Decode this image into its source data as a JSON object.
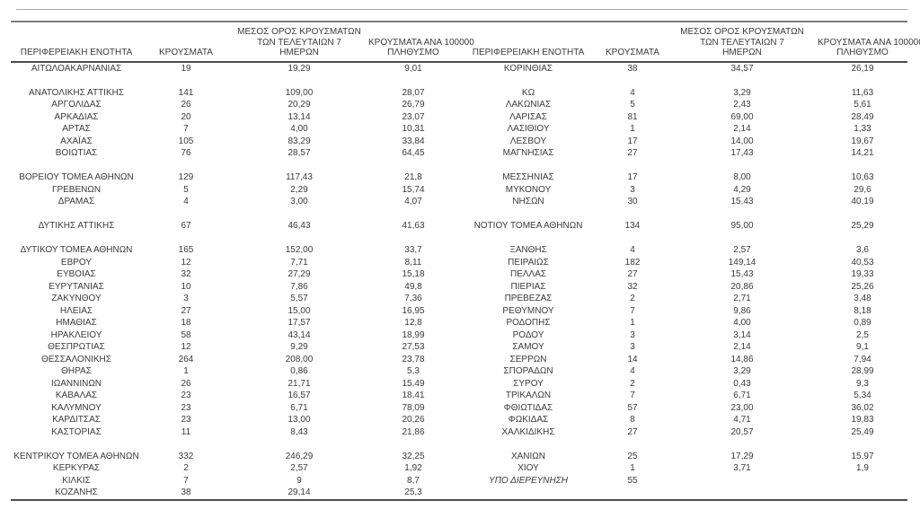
{
  "table": {
    "headers": {
      "region": "ΠΕΡΙΦΕΡΕΙΑΚΗ ΕΝΟΤΗΤΑ",
      "cases": "ΚΡΟΥΣΜΑΤΑ",
      "avg7": "ΜΕΣΟΣ ΟΡΟΣ ΚΡΟΥΣΜΑΤΩΝ\nΤΩΝ ΤΕΛΕΥΤΑΙΩΝ 7\nΗΜΕΡΩΝ",
      "per100k": "ΚΡΟΥΣΜΑΤΑ ΑΝΑ 100000\nΠΛΗΘΥΣΜΟ"
    },
    "rows": [
      {
        "left": [
          "ΑΙΤΩΛΟΑΚΑΡΝΑΝΙΑΣ",
          "19",
          "19,29",
          "9,01"
        ],
        "right": [
          "ΚΟΡΙΝΘΙΑΣ",
          "38",
          "34,57",
          "26,19"
        ]
      },
      {
        "left": [
          "",
          "",
          "",
          ""
        ],
        "right": [
          "",
          "",
          "",
          ""
        ]
      },
      {
        "left": [
          "ΑΝΑΤΟΛΙΚΗΣ ΑΤΤΙΚΗΣ",
          "141",
          "109,00",
          "28,07"
        ],
        "right": [
          "ΚΩ",
          "4",
          "3,29",
          "11,63"
        ]
      },
      {
        "left": [
          "ΑΡΓΟΛΙΔΑΣ",
          "26",
          "20,29",
          "26,79"
        ],
        "right": [
          "ΛΑΚΩΝΙΑΣ",
          "5",
          "2,43",
          "5,61"
        ]
      },
      {
        "left": [
          "ΑΡΚΑΔΙΑΣ",
          "20",
          "13,14",
          "23,07"
        ],
        "right": [
          "ΛΑΡΙΣΑΣ",
          "81",
          "69,00",
          "28,49"
        ]
      },
      {
        "left": [
          "ΑΡΤΑΣ",
          "7",
          "4,00",
          "10,31"
        ],
        "right": [
          "ΛΑΣΙΘΙΟΥ",
          "1",
          "2,14",
          "1,33"
        ]
      },
      {
        "left": [
          "ΑΧΑΪΑΣ",
          "105",
          "83,29",
          "33,84"
        ],
        "right": [
          "ΛΕΣΒΟΥ",
          "17",
          "14,00",
          "19,67"
        ]
      },
      {
        "left": [
          "ΒΟΙΩΤΙΑΣ",
          "76",
          "28,57",
          "64,45"
        ],
        "right": [
          "ΜΑΓΝΗΣΙΑΣ",
          "27",
          "17,43",
          "14,21"
        ]
      },
      {
        "left": [
          "",
          "",
          "",
          ""
        ],
        "right": [
          "",
          "",
          "",
          ""
        ]
      },
      {
        "left": [
          "ΒΟΡΕΙΟΥ ΤΟΜΕΑ ΑΘΗΝΩΝ",
          "129",
          "117,43",
          "21,8"
        ],
        "right": [
          "ΜΕΣΣΗΝΙΑΣ",
          "17",
          "8,00",
          "10,63"
        ]
      },
      {
        "left": [
          "ΓΡΕΒΕΝΩΝ",
          "5",
          "2,29",
          "15,74"
        ],
        "right": [
          "ΜΥΚΟΝΟΥ",
          "3",
          "4,29",
          "29,6"
        ]
      },
      {
        "left": [
          "ΔΡΑΜΑΣ",
          "4",
          "3,00",
          "4,07"
        ],
        "right": [
          "ΝΗΣΩΝ",
          "30",
          "15,43",
          "40,19"
        ]
      },
      {
        "left": [
          "",
          "",
          "",
          ""
        ],
        "right": [
          "",
          "",
          "",
          ""
        ]
      },
      {
        "left": [
          "ΔΥΤΙΚΗΣ ΑΤΤΙΚΗΣ",
          "67",
          "46,43",
          "41,63"
        ],
        "right": [
          "ΝΟΤΙΟΥ ΤΟΜΕΑ ΑΘΗΝΩΝ",
          "134",
          "95,00",
          "25,29"
        ]
      },
      {
        "left": [
          "",
          "",
          "",
          ""
        ],
        "right": [
          "",
          "",
          "",
          ""
        ]
      },
      {
        "left": [
          "ΔΥΤΙΚΟΥ ΤΟΜΕΑ ΑΘΗΝΩΝ",
          "165",
          "152,00",
          "33,7"
        ],
        "right": [
          "ΞΑΝΘΗΣ",
          "4",
          "2,57",
          "3,6"
        ]
      },
      {
        "left": [
          "ΕΒΡΟΥ",
          "12",
          "7,71",
          "8,11"
        ],
        "right": [
          "ΠΕΙΡΑΙΩΣ",
          "182",
          "149,14",
          "40,53"
        ]
      },
      {
        "left": [
          "ΕΥΒΟΙΑΣ",
          "32",
          "27,29",
          "15,18"
        ],
        "right": [
          "ΠΕΛΛΑΣ",
          "27",
          "15,43",
          "19,33"
        ]
      },
      {
        "left": [
          "ΕΥΡΥΤΑΝΙΑΣ",
          "10",
          "7,86",
          "49,8"
        ],
        "right": [
          "ΠΙΕΡΙΑΣ",
          "32",
          "20,86",
          "25,26"
        ]
      },
      {
        "left": [
          "ΖΑΚΥΝΘΟΥ",
          "3",
          "5,57",
          "7,36"
        ],
        "right": [
          "ΠΡΕΒΕΖΑΣ",
          "2",
          "2,71",
          "3,48"
        ]
      },
      {
        "left": [
          "ΗΛΕΙΑΣ",
          "27",
          "15,00",
          "16,95"
        ],
        "right": [
          "ΡΕΘΥΜΝΟΥ",
          "7",
          "9,86",
          "8,18"
        ]
      },
      {
        "left": [
          "ΗΜΑΘΙΑΣ",
          "18",
          "17,57",
          "12,8"
        ],
        "right": [
          "ΡΟΔΟΠΗΣ",
          "1",
          "4,00",
          "0,89"
        ]
      },
      {
        "left": [
          "ΗΡΑΚΛΕΙΟΥ",
          "58",
          "43,14",
          "18,99"
        ],
        "right": [
          "ΡΟΔΟΥ",
          "3",
          "3,14",
          "2,5"
        ]
      },
      {
        "left": [
          "ΘΕΣΠΡΩΤΙΑΣ",
          "12",
          "9,29",
          "27,53"
        ],
        "right": [
          "ΣΑΜΟΥ",
          "3",
          "2,14",
          "9,1"
        ]
      },
      {
        "left": [
          "ΘΕΣΣΑΛΟΝΙΚΗΣ",
          "264",
          "208,00",
          "23,78"
        ],
        "right": [
          "ΣΕΡΡΩΝ",
          "14",
          "14,86",
          "7,94"
        ]
      },
      {
        "left": [
          "ΘΗΡΑΣ",
          "1",
          "0,86",
          "5,3"
        ],
        "right": [
          "ΣΠΟΡΑΔΩΝ",
          "4",
          "3,29",
          "28,99"
        ]
      },
      {
        "left": [
          "ΙΩΑΝΝΙΝΩΝ",
          "26",
          "21,71",
          "15,49"
        ],
        "right": [
          "ΣΥΡΟΥ",
          "2",
          "0,43",
          "9,3"
        ]
      },
      {
        "left": [
          "ΚΑΒΑΛΑΣ",
          "23",
          "16,57",
          "18,41"
        ],
        "right": [
          "ΤΡΙΚΑΛΩΝ",
          "7",
          "6,71",
          "5,34"
        ]
      },
      {
        "left": [
          "ΚΑΛΥΜΝΟΥ",
          "23",
          "6,71",
          "78,09"
        ],
        "right": [
          "ΦΘΙΩΤΙΔΑΣ",
          "57",
          "23,00",
          "36,02"
        ]
      },
      {
        "left": [
          "ΚΑΡΔΙΤΣΑΣ",
          "23",
          "13,00",
          "20,26"
        ],
        "right": [
          "ΦΩΚΙΔΑΣ",
          "8",
          "4,71",
          "19,83"
        ]
      },
      {
        "left": [
          "ΚΑΣΤΟΡΙΑΣ",
          "11",
          "8,43",
          "21,86"
        ],
        "right": [
          "ΧΑΛΚΙΔΙΚΗΣ",
          "27",
          "20,57",
          "25,49"
        ]
      },
      {
        "left": [
          "",
          "",
          "",
          ""
        ],
        "right": [
          "",
          "",
          "",
          ""
        ]
      },
      {
        "left": [
          "ΚΕΝΤΡΙΚΟΥ ΤΟΜΕΑ ΑΘΗΝΩΝ",
          "332",
          "246,29",
          "32,25"
        ],
        "right": [
          "ΧΑΝΙΩΝ",
          "25",
          "17,29",
          "15,97"
        ]
      },
      {
        "left": [
          "ΚΕΡΚΥΡΑΣ",
          "2",
          "2,57",
          "1,92"
        ],
        "right": [
          "ΧΙΟΥ",
          "1",
          "3,71",
          "1,9"
        ]
      },
      {
        "left": [
          "ΚΙΛΚΙΣ",
          "7",
          "9",
          "8,7"
        ],
        "right": [
          "ΥΠΟ ΔΙΕΡΕΥΝΗΣΗ",
          "55",
          "",
          ""
        ],
        "right_italic": true
      },
      {
        "left": [
          "ΚΟΖΑΝΗΣ",
          "38",
          "29,14",
          "25,3"
        ],
        "right": [
          "",
          "",
          "",
          ""
        ]
      }
    ],
    "colors": {
      "text": "#3a3a3a",
      "rule_thin": "#a8a8a8",
      "rule_thick": "#7d7d7d",
      "header_rule": "#4d4d4d",
      "background": "#ffffff"
    }
  }
}
